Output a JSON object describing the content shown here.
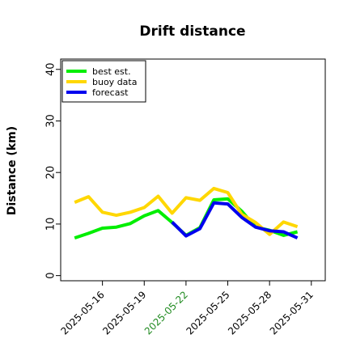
{
  "chart_data": {
    "type": "line",
    "title": "Drift distance",
    "xlabel": "",
    "ylabel": "Distance (km)",
    "xlim": [
      "2025-05-13",
      "2025-06-01"
    ],
    "ylim": [
      -1,
      42
    ],
    "yticks": [
      0,
      10,
      20,
      30,
      40
    ],
    "xtick_labels": [
      "2025-05-16",
      "2025-05-19",
      "2025-05-22",
      "2025-05-25",
      "2025-05-28",
      "2025-05-31"
    ],
    "highlight_tick": "2025-05-22",
    "grid": false,
    "legend_position": "top-left",
    "series": [
      {
        "name": "best est.",
        "color": "#00ee00",
        "x": [
          "2025-05-14",
          "2025-05-15",
          "2025-05-16",
          "2025-05-17",
          "2025-05-18",
          "2025-05-19",
          "2025-05-20",
          "2025-05-21",
          "2025-05-22",
          "2025-05-23",
          "2025-05-24",
          "2025-05-25",
          "2025-05-26",
          "2025-05-27",
          "2025-05-28",
          "2025-05-29",
          "2025-05-30"
        ],
        "y": [
          7.3,
          8.2,
          9.2,
          9.4,
          10.1,
          11.6,
          12.6,
          10.3,
          7.8,
          9.3,
          14.7,
          14.9,
          12.5,
          9.4,
          8.8,
          7.8,
          8.5
        ]
      },
      {
        "name": "buoy data",
        "color": "#ffd700",
        "x": [
          "2025-05-14",
          "2025-05-15",
          "2025-05-16",
          "2025-05-17",
          "2025-05-18",
          "2025-05-19",
          "2025-05-20",
          "2025-05-21",
          "2025-05-22",
          "2025-05-23",
          "2025-05-24",
          "2025-05-25",
          "2025-05-26",
          "2025-05-27",
          "2025-05-28",
          "2025-05-29",
          "2025-05-30"
        ],
        "y": [
          14.2,
          15.3,
          12.3,
          11.7,
          12.3,
          13.2,
          15.4,
          12.1,
          15.1,
          14.6,
          16.9,
          16.1,
          11.9,
          10.3,
          8.0,
          10.4,
          9.5
        ]
      },
      {
        "name": "forecast",
        "color": "#0000ee",
        "x": [
          "2025-05-21",
          "2025-05-22",
          "2025-05-23",
          "2025-05-24",
          "2025-05-25",
          "2025-05-26",
          "2025-05-27",
          "2025-05-28",
          "2025-05-29",
          "2025-05-30"
        ],
        "y": [
          10.4,
          7.7,
          9.1,
          14.1,
          13.9,
          11.3,
          9.4,
          8.7,
          8.5,
          7.3
        ]
      }
    ]
  }
}
